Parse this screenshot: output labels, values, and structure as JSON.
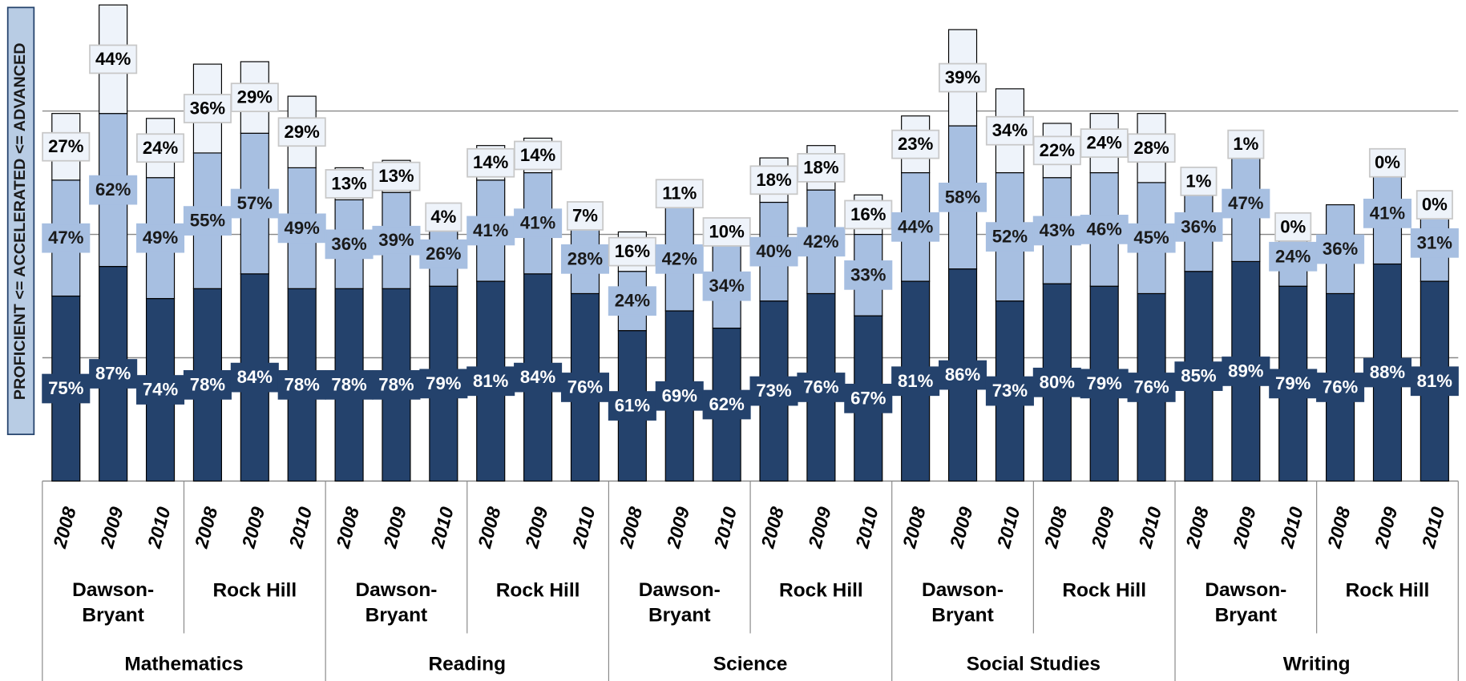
{
  "chart_data": {
    "type": "stacked_bar",
    "y_axis_label": "PROFICIENT <= ACCELERATED <= ADVANCED",
    "ylim": [
      0,
      195
    ],
    "yticks": [
      50,
      100,
      150
    ],
    "grid": true,
    "categories": [
      "2008",
      "2009",
      "2010",
      "2008",
      "2009",
      "2010",
      "2008",
      "2009",
      "2010",
      "2008",
      "2009",
      "2010",
      "2008",
      "2009",
      "2010",
      "2008",
      "2009",
      "2010",
      "2008",
      "2009",
      "2010",
      "2008",
      "2009",
      "2010",
      "2008",
      "2009",
      "2010",
      "2008",
      "2009",
      "2010"
    ],
    "school_groups": [
      "Dawson-Bryant",
      "Rock Hill",
      "Dawson-Bryant",
      "Rock Hill",
      "Dawson-Bryant",
      "Rock Hill",
      "Dawson-Bryant",
      "Rock Hill",
      "Dawson-Bryant",
      "Rock Hill"
    ],
    "subject_groups": [
      "Mathematics",
      "Reading",
      "Science",
      "Social Studies",
      "Writing"
    ],
    "series": [
      {
        "color": "#24426c",
        "label_color": "#ffffff",
        "values": [
          75,
          87,
          74,
          78,
          84,
          78,
          78,
          78,
          79,
          81,
          84,
          76,
          61,
          69,
          62,
          73,
          76,
          67,
          81,
          86,
          73,
          80,
          79,
          76,
          85,
          89,
          79,
          76,
          88,
          81
        ]
      },
      {
        "color": "#a7bfe1",
        "label_color": "#1a1a1a",
        "values": [
          47,
          62,
          49,
          55,
          57,
          49,
          36,
          39,
          26,
          41,
          41,
          28,
          24,
          42,
          34,
          40,
          42,
          33,
          44,
          58,
          52,
          43,
          46,
          45,
          36,
          47,
          24,
          36,
          41,
          31
        ]
      },
      {
        "color": "#eef3fa",
        "label_color": "#000000",
        "values": [
          27,
          44,
          24,
          36,
          29,
          29,
          13,
          13,
          4,
          14,
          14,
          7,
          16,
          11,
          10,
          18,
          18,
          16,
          23,
          39,
          34,
          22,
          24,
          28,
          1,
          1,
          0,
          null,
          0,
          0
        ]
      }
    ],
    "value_labels": [
      [
        "75%",
        "87%",
        "74%",
        "78%",
        "84%",
        "78%",
        "78%",
        "78%",
        "79%",
        "81%",
        "84%",
        "76%",
        "61%",
        "69%",
        "62%",
        "73%",
        "76%",
        "67%",
        "81%",
        "86%",
        "73%",
        "80%",
        "79%",
        "76%",
        "85%",
        "89%",
        "79%",
        "76%",
        "88%",
        "81%"
      ],
      [
        "47%",
        "62%",
        "49%",
        "55%",
        "57%",
        "49%",
        "36%",
        "39%",
        "26%",
        "41%",
        "41%",
        "28%",
        "24%",
        "42%",
        "34%",
        "40%",
        "42%",
        "33%",
        "44%",
        "58%",
        "52%",
        "43%",
        "46%",
        "45%",
        "36%",
        "47%",
        "24%",
        "36%",
        "41%",
        "31%"
      ],
      [
        "27%",
        "44%",
        "24%",
        "36%",
        "29%",
        "29%",
        "13%",
        "13%",
        "4%",
        "14%",
        "14%",
        "7%",
        "16%",
        "11%",
        "10%",
        "18%",
        "18%",
        "16%",
        "23%",
        "39%",
        "34%",
        "22%",
        "24%",
        "28%",
        "1%",
        "1%",
        "0%",
        null,
        "0%",
        "0%"
      ]
    ]
  }
}
